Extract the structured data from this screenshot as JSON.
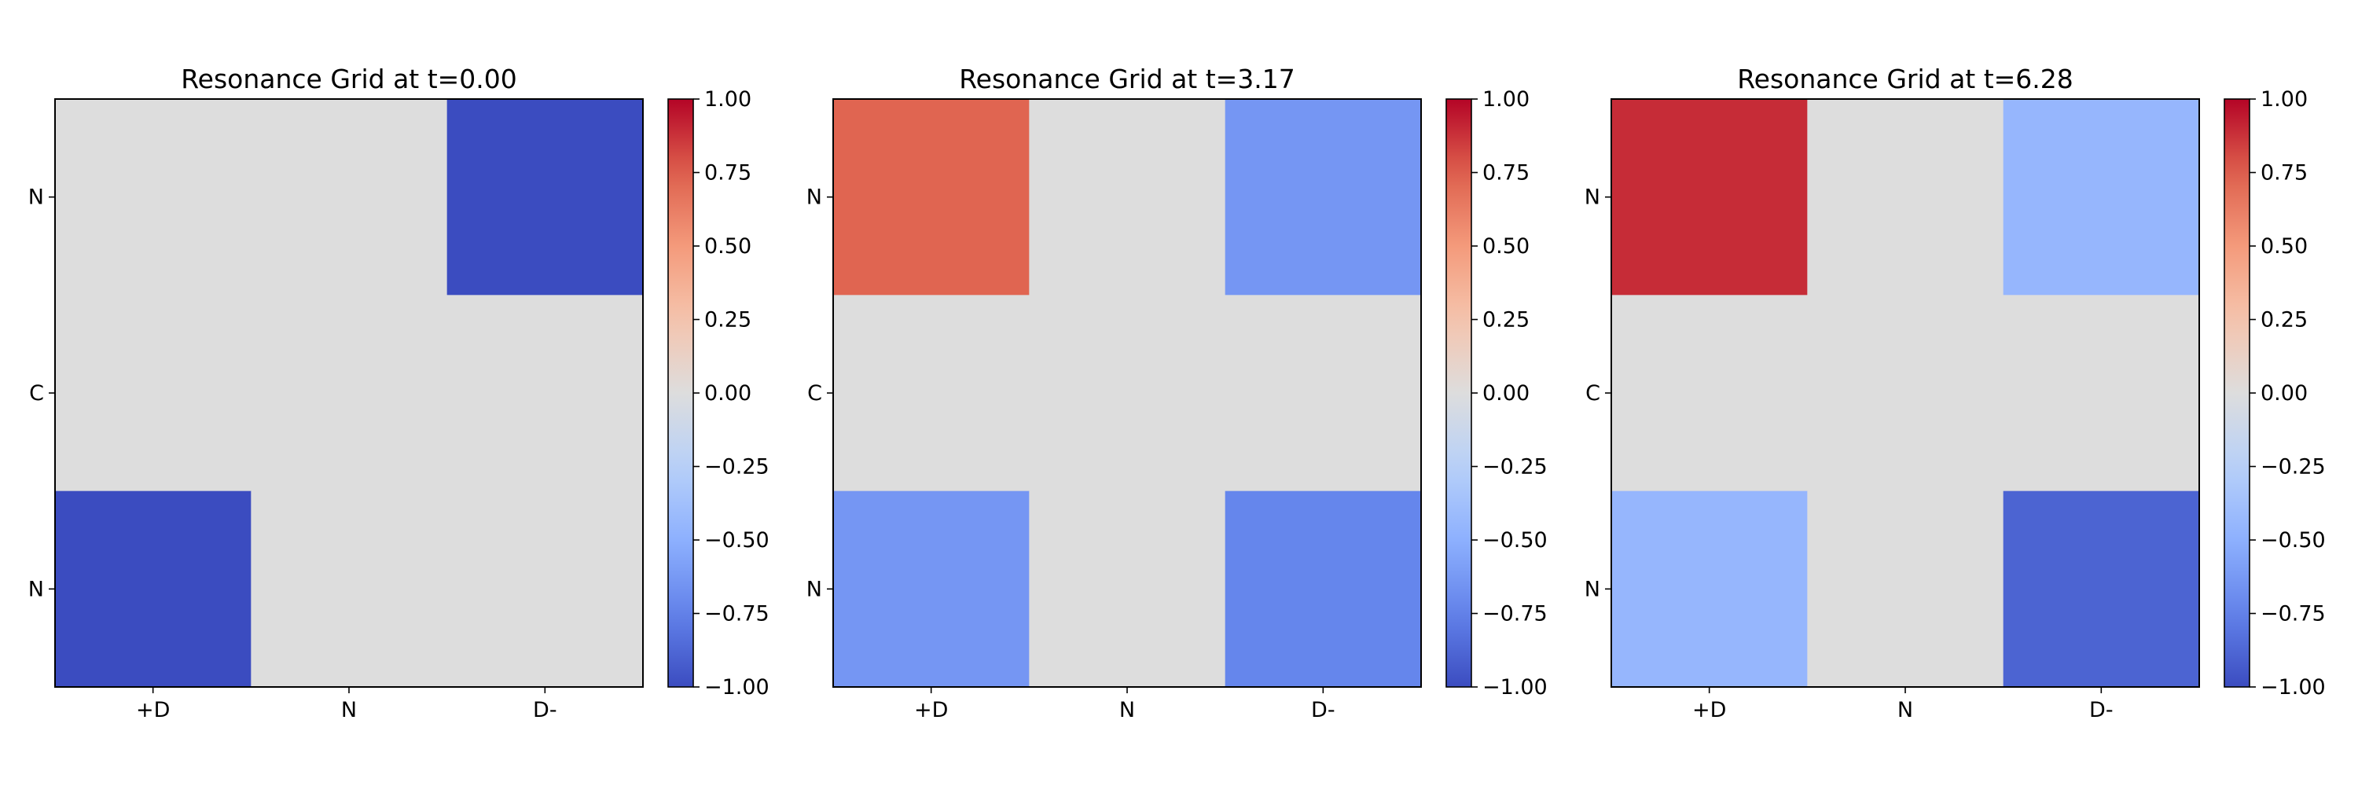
{
  "figure": {
    "background": "#ffffff",
    "colormap": "coolwarm"
  },
  "chart_data": [
    {
      "type": "heatmap",
      "title": "Resonance Grid at t=0.00",
      "x_categories": [
        "+D",
        "N",
        "D-"
      ],
      "y_categories": [
        "N",
        "C",
        "N"
      ],
      "values": [
        [
          0.0,
          0.0,
          -1.0
        ],
        [
          0.0,
          0.0,
          0.0
        ],
        [
          -1.0,
          0.0,
          0.0
        ]
      ],
      "vmin": -1.0,
      "vmax": 1.0,
      "colorbar_ticks": [
        "1.00",
        "0.75",
        "0.50",
        "0.25",
        "0.00",
        "−0.25",
        "−0.50",
        "−0.75",
        "−1.00"
      ],
      "colorbar_tick_values": [
        1.0,
        0.75,
        0.5,
        0.25,
        0.0,
        -0.25,
        -0.5,
        -0.75,
        -1.0
      ]
    },
    {
      "type": "heatmap",
      "title": "Resonance Grid at t=3.17",
      "x_categories": [
        "+D",
        "N",
        "D-"
      ],
      "y_categories": [
        "N",
        "C",
        "N"
      ],
      "values": [
        [
          0.73,
          0.0,
          -0.64
        ],
        [
          0.0,
          0.0,
          0.0
        ],
        [
          -0.64,
          0.0,
          -0.73
        ]
      ],
      "vmin": -1.0,
      "vmax": 1.0,
      "colorbar_ticks": [
        "1.00",
        "0.75",
        "0.50",
        "0.25",
        "0.00",
        "−0.25",
        "−0.50",
        "−0.75",
        "−1.00"
      ],
      "colorbar_tick_values": [
        1.0,
        0.75,
        0.5,
        0.25,
        0.0,
        -0.25,
        -0.5,
        -0.75,
        -1.0
      ]
    },
    {
      "type": "heatmap",
      "title": "Resonance Grid at t=6.28",
      "x_categories": [
        "+D",
        "N",
        "D-"
      ],
      "y_categories": [
        "N",
        "C",
        "N"
      ],
      "values": [
        [
          0.89,
          0.0,
          -0.45
        ],
        [
          0.0,
          0.0,
          0.0
        ],
        [
          -0.45,
          0.0,
          -0.89
        ]
      ],
      "vmin": -1.0,
      "vmax": 1.0,
      "colorbar_ticks": [
        "1.00",
        "0.75",
        "0.50",
        "0.25",
        "0.00",
        "−0.25",
        "−0.50",
        "−0.75",
        "−1.00"
      ],
      "colorbar_tick_values": [
        1.0,
        0.75,
        0.5,
        0.25,
        0.0,
        -0.25,
        -0.5,
        -0.75,
        -1.0
      ]
    }
  ]
}
